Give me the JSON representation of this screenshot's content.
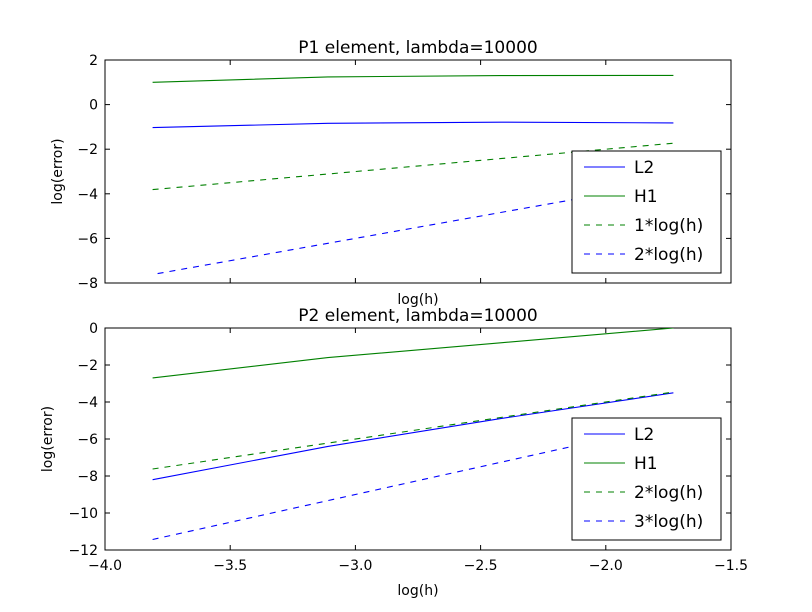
{
  "chart_data": [
    {
      "type": "line",
      "title": "P1 element, lambda=10000",
      "xlabel": "log(h)",
      "ylabel": "log(error)",
      "xlim": [
        -4.0,
        -1.5
      ],
      "ylim": [
        -8,
        2
      ],
      "xticks": [
        -4.0,
        -3.5,
        -3.0,
        -2.5,
        -2.0,
        -1.5
      ],
      "xtick_labels_visible": false,
      "yticks": [
        -8,
        -6,
        -4,
        -2,
        0,
        2
      ],
      "ytick_labels": [
        "−8",
        "−6",
        "−4",
        "−2",
        "0",
        "2"
      ],
      "grid": false,
      "legend_position": "lower-right",
      "series": [
        {
          "name": "L2",
          "color": "#0000ff",
          "style": "solid",
          "x": [
            -3.81,
            -3.11,
            -2.42,
            -1.73
          ],
          "y": [
            -1.03,
            -0.84,
            -0.79,
            -0.82
          ]
        },
        {
          "name": "H1",
          "color": "#008000",
          "style": "solid",
          "x": [
            -3.81,
            -3.11,
            -2.42,
            -1.73
          ],
          "y": [
            1.0,
            1.24,
            1.3,
            1.31
          ]
        },
        {
          "name": "1*log(h)",
          "color": "#008000",
          "style": "dashed",
          "x": [
            -3.81,
            -3.11,
            -2.42,
            -1.73
          ],
          "y": [
            -3.81,
            -3.11,
            -2.42,
            -1.73
          ]
        },
        {
          "name": "2*log(h)",
          "color": "#0000ff",
          "style": "dashed",
          "x": [
            -3.79,
            -3.11,
            -2.42,
            -1.73
          ],
          "y": [
            -7.58,
            -6.22,
            -4.84,
            -3.46
          ]
        }
      ]
    },
    {
      "type": "line",
      "title": "P2 element, lambda=10000",
      "xlabel": "log(h)",
      "ylabel": "log(error)",
      "xlim": [
        -4.0,
        -1.5
      ],
      "ylim": [
        -12,
        0
      ],
      "xticks": [
        -4.0,
        -3.5,
        -3.0,
        -2.5,
        -2.0,
        -1.5
      ],
      "xtick_labels": [
        "−4.0",
        "−3.5",
        "−3.0",
        "−2.5",
        "−2.0",
        "−1.5"
      ],
      "yticks": [
        -12,
        -10,
        -8,
        -6,
        -4,
        -2,
        0
      ],
      "ytick_labels": [
        "−12",
        "−10",
        "−8",
        "−6",
        "−4",
        "−2",
        "0"
      ],
      "grid": false,
      "legend_position": "lower-right",
      "series": [
        {
          "name": "L2",
          "color": "#0000ff",
          "style": "solid",
          "x": [
            -3.81,
            -3.11,
            -2.42,
            -1.73
          ],
          "y": [
            -8.2,
            -6.4,
            -4.9,
            -3.5
          ]
        },
        {
          "name": "H1",
          "color": "#008000",
          "style": "solid",
          "x": [
            -3.81,
            -3.11,
            -2.42,
            -1.73
          ],
          "y": [
            -2.7,
            -1.6,
            -0.8,
            0.0
          ]
        },
        {
          "name": "2*log(h)",
          "color": "#008000",
          "style": "dashed",
          "x": [
            -3.81,
            -3.11,
            -2.42,
            -1.73
          ],
          "y": [
            -7.62,
            -6.22,
            -4.84,
            -3.46
          ]
        },
        {
          "name": "3*log(h)",
          "color": "#0000ff",
          "style": "dashed",
          "x": [
            -3.81,
            -3.11,
            -2.42,
            -1.73
          ],
          "y": [
            -11.43,
            -9.33,
            -7.26,
            -5.19
          ]
        }
      ]
    }
  ]
}
